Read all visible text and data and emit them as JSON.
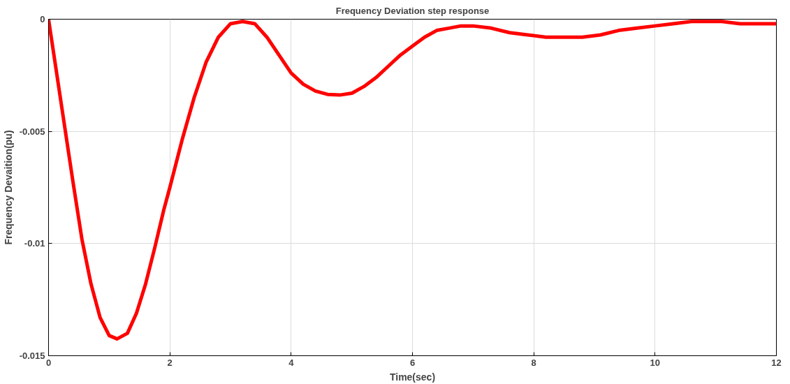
{
  "chart_data": {
    "type": "line",
    "title": "Frequency Deviation step response",
    "xlabel": "Time(sec)",
    "ylabel": "Frequency Devaition(pu)",
    "x": [
      0,
      0.1,
      0.25,
      0.4,
      0.55,
      0.7,
      0.85,
      1.0,
      1.13,
      1.3,
      1.45,
      1.6,
      1.75,
      1.9,
      2.0,
      2.2,
      2.4,
      2.6,
      2.8,
      3.0,
      3.2,
      3.4,
      3.6,
      3.8,
      4.0,
      4.2,
      4.4,
      4.6,
      4.8,
      5.0,
      5.2,
      5.4,
      5.6,
      5.8,
      6.0,
      6.2,
      6.4,
      6.6,
      6.8,
      7.0,
      7.3,
      7.6,
      7.9,
      8.2,
      8.5,
      8.8,
      9.1,
      9.4,
      9.7,
      10.0,
      10.3,
      10.6,
      10.8,
      11.1,
      11.4,
      11.7,
      12.0
    ],
    "series": [
      {
        "color": "#ff0000",
        "values": [
          0,
          -0.0018,
          -0.0045,
          -0.0072,
          -0.0098,
          -0.0118,
          -0.0133,
          -0.0141,
          -0.01425,
          -0.014,
          -0.0131,
          -0.0118,
          -0.0102,
          -0.0085,
          -0.0075,
          -0.0054,
          -0.0035,
          -0.0019,
          -0.0008,
          -0.0002,
          -0.0001,
          -0.0002,
          -0.0008,
          -0.0016,
          -0.0024,
          -0.0029,
          -0.0032,
          -0.00335,
          -0.00338,
          -0.0033,
          -0.003,
          -0.0026,
          -0.0021,
          -0.0016,
          -0.0012,
          -0.0008,
          -0.0005,
          -0.0004,
          -0.0003,
          -0.0003,
          -0.0004,
          -0.0006,
          -0.0007,
          -0.0008,
          -0.0008,
          -0.0008,
          -0.0007,
          -0.0005,
          -0.0004,
          -0.0003,
          -0.0002,
          -0.0001,
          -0.0001,
          -0.0001,
          -0.0002,
          -0.0002,
          -0.0002
        ]
      }
    ],
    "xlim": [
      0,
      12
    ],
    "ylim": [
      -0.015,
      0
    ],
    "xticks": [
      0,
      2,
      4,
      6,
      8,
      10,
      12
    ],
    "yticks": [
      0,
      -0.005,
      -0.01,
      -0.015
    ],
    "grid": true,
    "line_style": "solid"
  }
}
